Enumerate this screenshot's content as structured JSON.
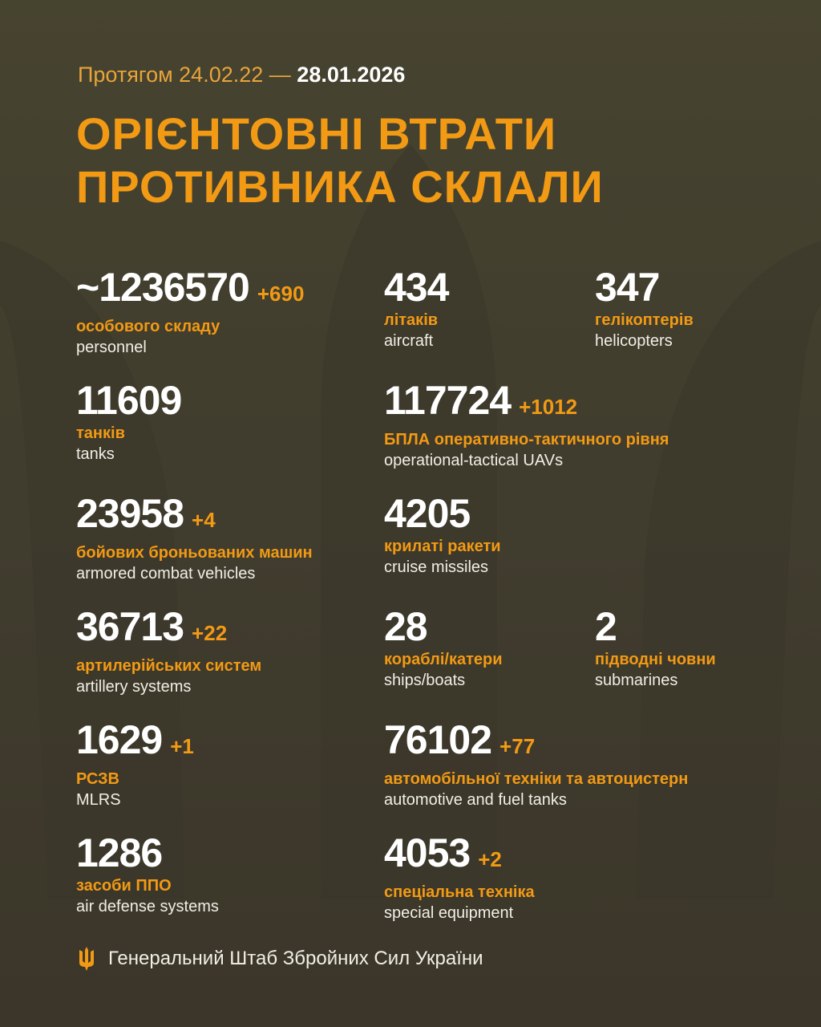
{
  "header": {
    "period_prefix": "Протягом 24.02.22 —",
    "period_end": "28.01.2026",
    "title_line1": "ОРІЄНТОВНІ ВТРАТИ",
    "title_line2": "ПРОТИВНИКА СКЛАЛИ"
  },
  "colors": {
    "accent": "#f29a14",
    "background": "#403c2e",
    "text": "#ffffff"
  },
  "stats": [
    {
      "value": "~1236570",
      "delta": "+690",
      "ua": "особового складу",
      "en": "personnel"
    },
    {
      "value": "434",
      "delta": "",
      "ua": "літаків",
      "en": "aircraft"
    },
    {
      "value": "347",
      "delta": "",
      "ua": "гелікоптерів",
      "en": "helicopters"
    },
    {
      "value": "11609",
      "delta": "",
      "ua": "танків",
      "en": "tanks"
    },
    {
      "value": "117724",
      "delta": "+1012",
      "ua": "БПЛА оперативно-тактичного рівня",
      "en": "operational-tactical UAVs"
    },
    {
      "value": "23958",
      "delta": "+4",
      "ua": "бойових броньованих машин",
      "en": "armored combat vehicles"
    },
    {
      "value": "4205",
      "delta": "",
      "ua": "крилаті ракети",
      "en": "cruise missiles"
    },
    {
      "value": "36713",
      "delta": "+22",
      "ua": "артилерійських систем",
      "en": "artillery systems"
    },
    {
      "value": "28",
      "delta": "",
      "ua": "кораблі/катери",
      "en": "ships/boats"
    },
    {
      "value": "2",
      "delta": "",
      "ua": "підводні човни",
      "en": "submarines"
    },
    {
      "value": "1629",
      "delta": "+1",
      "ua": "РСЗВ",
      "en": "MLRS"
    },
    {
      "value": "76102",
      "delta": "+77",
      "ua": "автомобільної техніки та автоцистерн",
      "en": "automotive and fuel tanks"
    },
    {
      "value": "1286",
      "delta": "",
      "ua": "засоби ППО",
      "en": "air defense systems"
    },
    {
      "value": "4053",
      "delta": "+2",
      "ua": "спеціальна техніка",
      "en": "special equipment"
    }
  ],
  "footer": {
    "icon": "trident-icon",
    "text": "Генеральний Штаб Збройних Сил України"
  }
}
